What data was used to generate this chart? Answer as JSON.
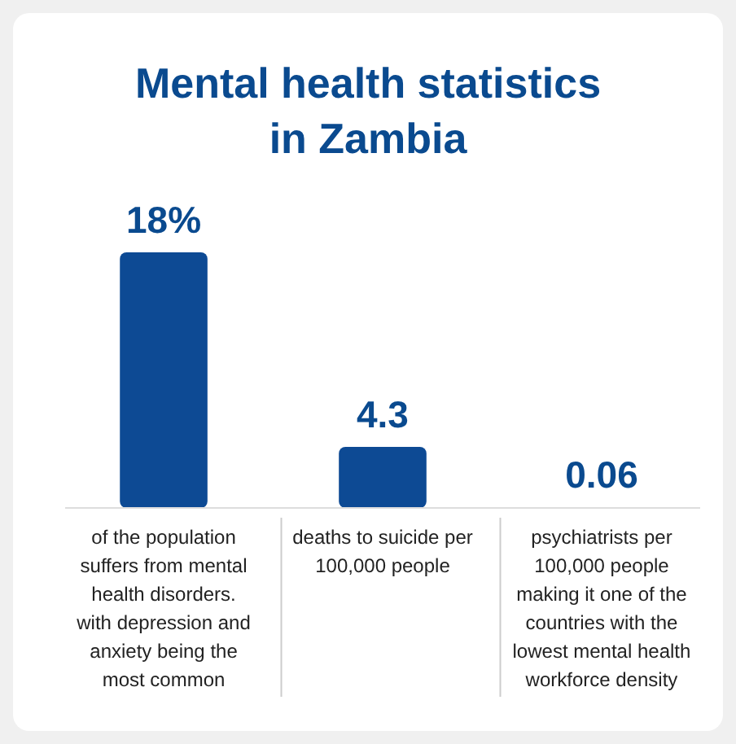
{
  "chart_data": {
    "type": "bar",
    "title": "Mental health statistics in Zambia",
    "categories": [
      "of the population suffers from mental health disorders. with depression and anxiety being the most common",
      "deaths to suicide per 100,000 people",
      "psychiatrists per 100,000 people making it one of the countries with the lowest mental health workforce density"
    ],
    "values": [
      18,
      4.3,
      0.06
    ],
    "value_labels": [
      "18%",
      "4.3",
      "0.06"
    ],
    "color": "#0d4a94"
  }
}
